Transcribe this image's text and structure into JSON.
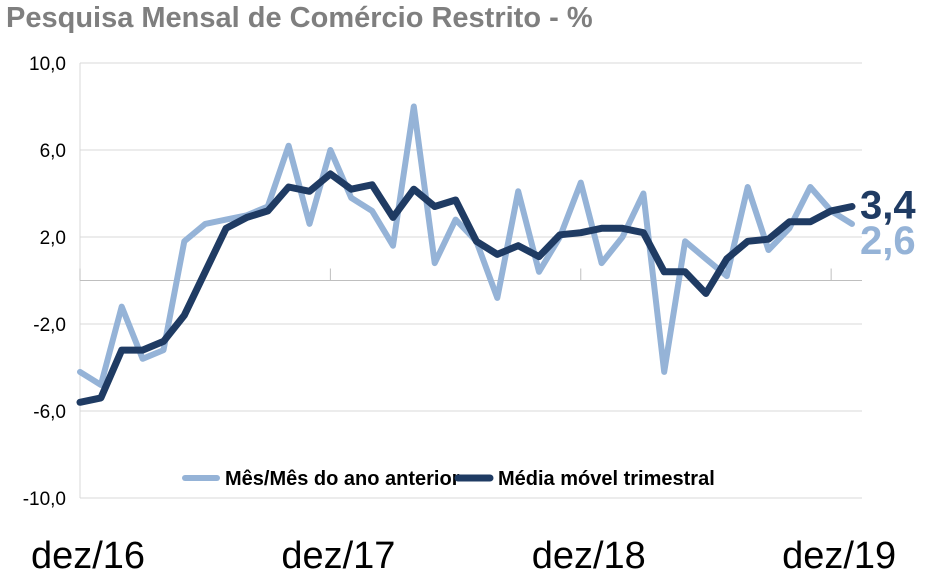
{
  "chart_data": {
    "type": "line",
    "title": "Pesquisa Mensal de Comércio Restrito - %",
    "xlabel": "",
    "ylabel": "",
    "ylim": [
      -10,
      10
    ],
    "yticks": [
      "10,0",
      "6,0",
      "2,0",
      "-2,0",
      "-6,0",
      "-10,0"
    ],
    "ytick_values": [
      10,
      6,
      2,
      -2,
      -6,
      -10
    ],
    "xticks": [
      {
        "index": 0,
        "label": "dez/16"
      },
      {
        "index": 12,
        "label": "dez/17"
      },
      {
        "index": 24,
        "label": "dez/18"
      },
      {
        "index": 36,
        "label": "dez/19"
      }
    ],
    "grid": true,
    "legend_position": "bottom",
    "series": [
      {
        "name": "Mês/Mês do ano anterior",
        "color": "#95b3d7",
        "end_label": "2,6",
        "values": [
          -4.2,
          -4.8,
          -1.2,
          -3.6,
          -3.2,
          1.8,
          2.6,
          2.8,
          3.0,
          3.4,
          6.2,
          2.6,
          6.0,
          3.8,
          3.2,
          1.6,
          8.0,
          0.8,
          2.8,
          1.8,
          -0.8,
          4.1,
          0.4,
          2.0,
          4.5,
          0.8,
          2.0,
          4.0,
          -4.2,
          1.8,
          1.0,
          0.2,
          4.3,
          1.4,
          2.4,
          4.3,
          3.2,
          2.6
        ],
        "has_end_label": true
      },
      {
        "name": "Média móvel trimestral",
        "color": "#1f3b63",
        "end_label": "3,4",
        "values": [
          -5.6,
          -5.4,
          -3.2,
          -3.2,
          -2.8,
          -1.6,
          0.4,
          2.4,
          2.9,
          3.2,
          4.3,
          4.1,
          4.9,
          4.2,
          4.4,
          2.9,
          4.2,
          3.4,
          3.7,
          1.8,
          1.2,
          1.6,
          1.1,
          2.1,
          2.2,
          2.4,
          2.4,
          2.2,
          0.4,
          0.4,
          -0.6,
          1.0,
          1.8,
          1.9,
          2.7,
          2.7,
          3.2,
          3.4
        ],
        "has_end_label": true
      }
    ]
  }
}
